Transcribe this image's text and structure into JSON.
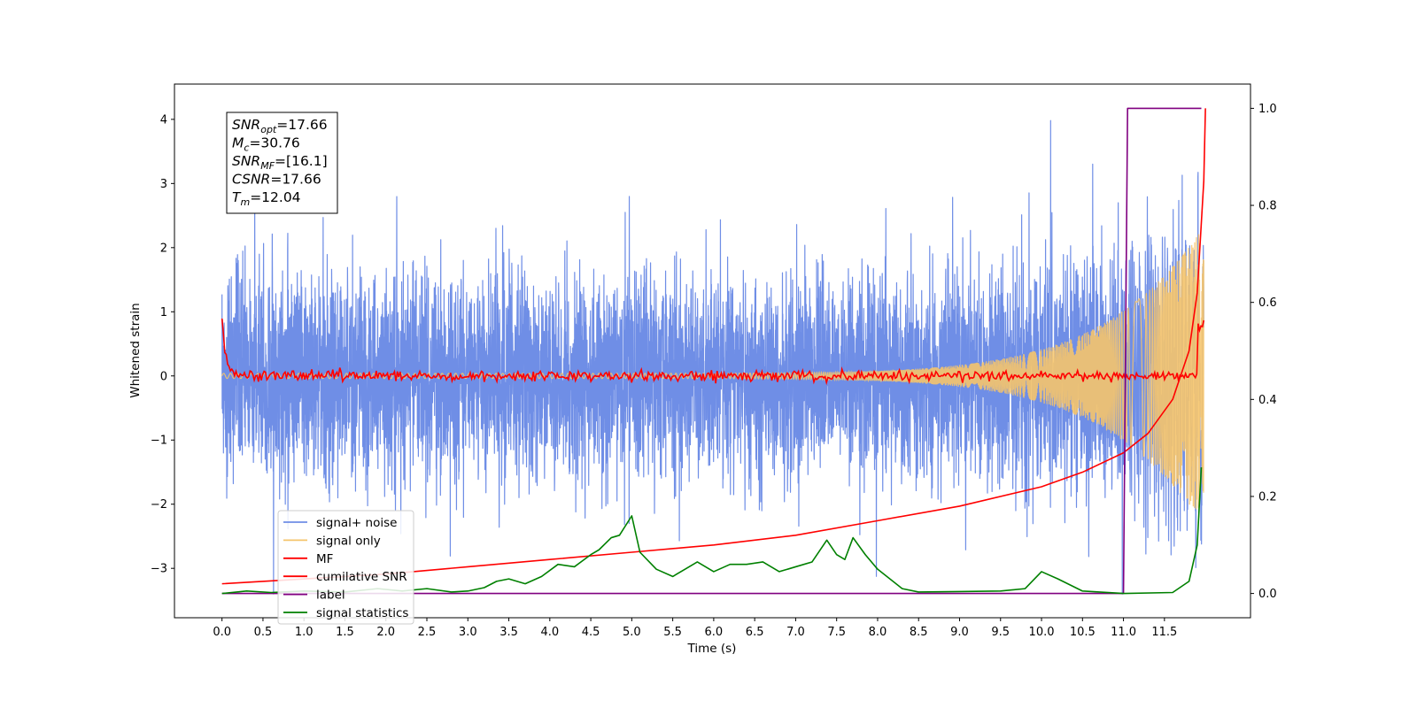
{
  "chart_data": {
    "type": "line",
    "xlabel": "Time (s)",
    "ylabel": "Whitened strain",
    "xlim": [
      -0.58,
      12.55
    ],
    "ylim": [
      -3.77,
      4.55
    ],
    "y2lim": [
      -0.05,
      1.05
    ],
    "x_ticks": [
      0.0,
      0.5,
      1.0,
      1.5,
      2.0,
      2.5,
      3.0,
      3.5,
      4.0,
      4.5,
      5.0,
      5.5,
      6.0,
      6.5,
      7.0,
      7.5,
      8.0,
      8.5,
      9.0,
      9.5,
      10.0,
      10.5,
      11.0,
      11.5
    ],
    "x_tick_labels": [
      "0.0",
      "0.5",
      "1.0",
      "1.5",
      "2.0",
      "2.5",
      "3.0",
      "3.5",
      "4.0",
      "4.5",
      "5.0",
      "5.5",
      "6.0",
      "6.5",
      "7.0",
      "7.5",
      "8.0",
      "8.5",
      "9.0",
      "9.5",
      "10.0",
      "10.5",
      "11.0",
      "11.5"
    ],
    "y_ticks": [
      -3,
      -2,
      -1,
      0,
      1,
      2,
      3,
      4
    ],
    "y_tick_labels": [
      "−3",
      "−2",
      "−1",
      "0",
      "1",
      "2",
      "3",
      "4"
    ],
    "y2_ticks": [
      0.0,
      0.2,
      0.4,
      0.6,
      0.8,
      1.0
    ],
    "y2_tick_labels": [
      "0.0",
      "0.2",
      "0.4",
      "0.6",
      "0.8",
      "1.0"
    ],
    "grid": false,
    "legend_position": "lower-left",
    "series": [
      {
        "name": "signal+ noise",
        "axis": "left",
        "color": "#6f8ee6",
        "style": "noisy-strain"
      },
      {
        "name": "signal only",
        "axis": "left",
        "color": "#f5c46b",
        "style": "chirp"
      },
      {
        "name": "MF",
        "axis": "left",
        "color": "#ff0000",
        "style": "matched-filter"
      },
      {
        "name": "cumilative SNR",
        "axis": "right",
        "color": "#ff0000",
        "x": [
          0.0,
          1.0,
          2.0,
          3.0,
          4.0,
          5.0,
          6.0,
          7.0,
          8.0,
          9.0,
          10.0,
          10.5,
          11.0,
          11.3,
          11.6,
          11.8,
          11.9,
          11.98,
          12.0
        ],
        "values": [
          0.02,
          0.03,
          0.04,
          0.055,
          0.07,
          0.085,
          0.1,
          0.12,
          0.15,
          0.18,
          0.22,
          0.25,
          0.29,
          0.33,
          0.4,
          0.5,
          0.62,
          0.85,
          1.0
        ]
      },
      {
        "name": "label",
        "axis": "right",
        "color": "#800080",
        "x": [
          0.0,
          11.0,
          11.05,
          11.95
        ],
        "values": [
          0.0,
          0.0,
          1.0,
          1.0
        ]
      },
      {
        "name": "signal statistics",
        "axis": "right",
        "color": "#008000",
        "x": [
          0.0,
          0.3,
          0.6,
          1.0,
          1.5,
          1.9,
          2.2,
          2.5,
          2.8,
          3.0,
          3.2,
          3.35,
          3.5,
          3.7,
          3.9,
          4.1,
          4.3,
          4.5,
          4.6,
          4.75,
          4.85,
          5.0,
          5.1,
          5.3,
          5.5,
          5.65,
          5.8,
          6.0,
          6.2,
          6.4,
          6.6,
          6.8,
          7.0,
          7.2,
          7.38,
          7.5,
          7.6,
          7.7,
          7.85,
          8.0,
          8.3,
          8.5,
          9.0,
          9.5,
          9.8,
          10.0,
          10.2,
          10.5,
          11.0,
          11.6,
          11.8,
          11.9,
          11.95
        ],
        "values": [
          0.0,
          0.005,
          0.002,
          0.005,
          0.003,
          0.01,
          0.005,
          0.01,
          0.003,
          0.005,
          0.012,
          0.025,
          0.03,
          0.02,
          0.035,
          0.06,
          0.055,
          0.08,
          0.09,
          0.115,
          0.12,
          0.16,
          0.085,
          0.05,
          0.035,
          0.05,
          0.065,
          0.045,
          0.06,
          0.06,
          0.065,
          0.045,
          0.055,
          0.065,
          0.11,
          0.08,
          0.07,
          0.115,
          0.08,
          0.05,
          0.01,
          0.003,
          0.004,
          0.005,
          0.01,
          0.045,
          0.03,
          0.005,
          0.0,
          0.002,
          0.025,
          0.1,
          0.26
        ]
      }
    ],
    "annotation": [
      {
        "main": "SNR",
        "sub": "opt",
        "value": "=17.66"
      },
      {
        "main": "M",
        "sub": "c",
        "value": "=30.76"
      },
      {
        "main": "SNR",
        "sub": "MF",
        "value": "=[16.1]"
      },
      {
        "main": "CSNR",
        "sub": "",
        "value": "=17.66"
      },
      {
        "main": "T",
        "sub": "m",
        "value": "=12.04"
      }
    ]
  }
}
